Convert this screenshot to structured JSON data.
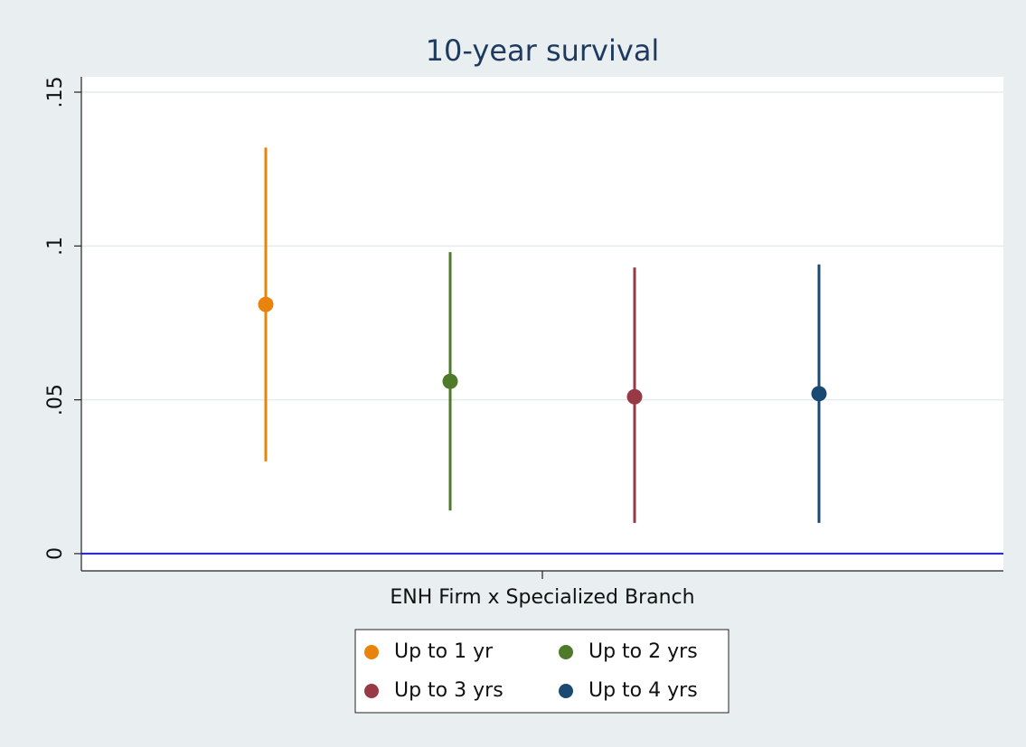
{
  "chart_data": {
    "type": "coefplot",
    "title": "10-year survival",
    "categories": [
      "ENH Firm x Specialized Branch"
    ],
    "series": [
      {
        "name": "Up to 1 yr",
        "color": "#e8830b",
        "values": [
          0.081
        ],
        "lower": [
          0.03
        ],
        "upper": [
          0.132
        ]
      },
      {
        "name": "Up to 2 yrs",
        "color": "#4e7a2a",
        "values": [
          0.056
        ],
        "lower": [
          0.014
        ],
        "upper": [
          0.098
        ]
      },
      {
        "name": "Up to 3 yrs",
        "color": "#973a45",
        "values": [
          0.051
        ],
        "lower": [
          0.01
        ],
        "upper": [
          0.093
        ]
      },
      {
        "name": "Up to 4 yrs",
        "color": "#1a4a72",
        "values": [
          0.052
        ],
        "lower": [
          0.01
        ],
        "upper": [
          0.094
        ]
      }
    ],
    "ylim": [
      -0.0056,
      0.155
    ],
    "yticks": [
      0,
      {
        "value": 0.05,
        "label": ".05"
      },
      {
        "value": 0.1,
        "label": ".1"
      },
      {
        "value": 0.15,
        "label": ".15"
      }
    ],
    "grid": true,
    "reference_line": {
      "value": 0,
      "color": "#1f1fd6"
    },
    "legend": "bottom"
  }
}
